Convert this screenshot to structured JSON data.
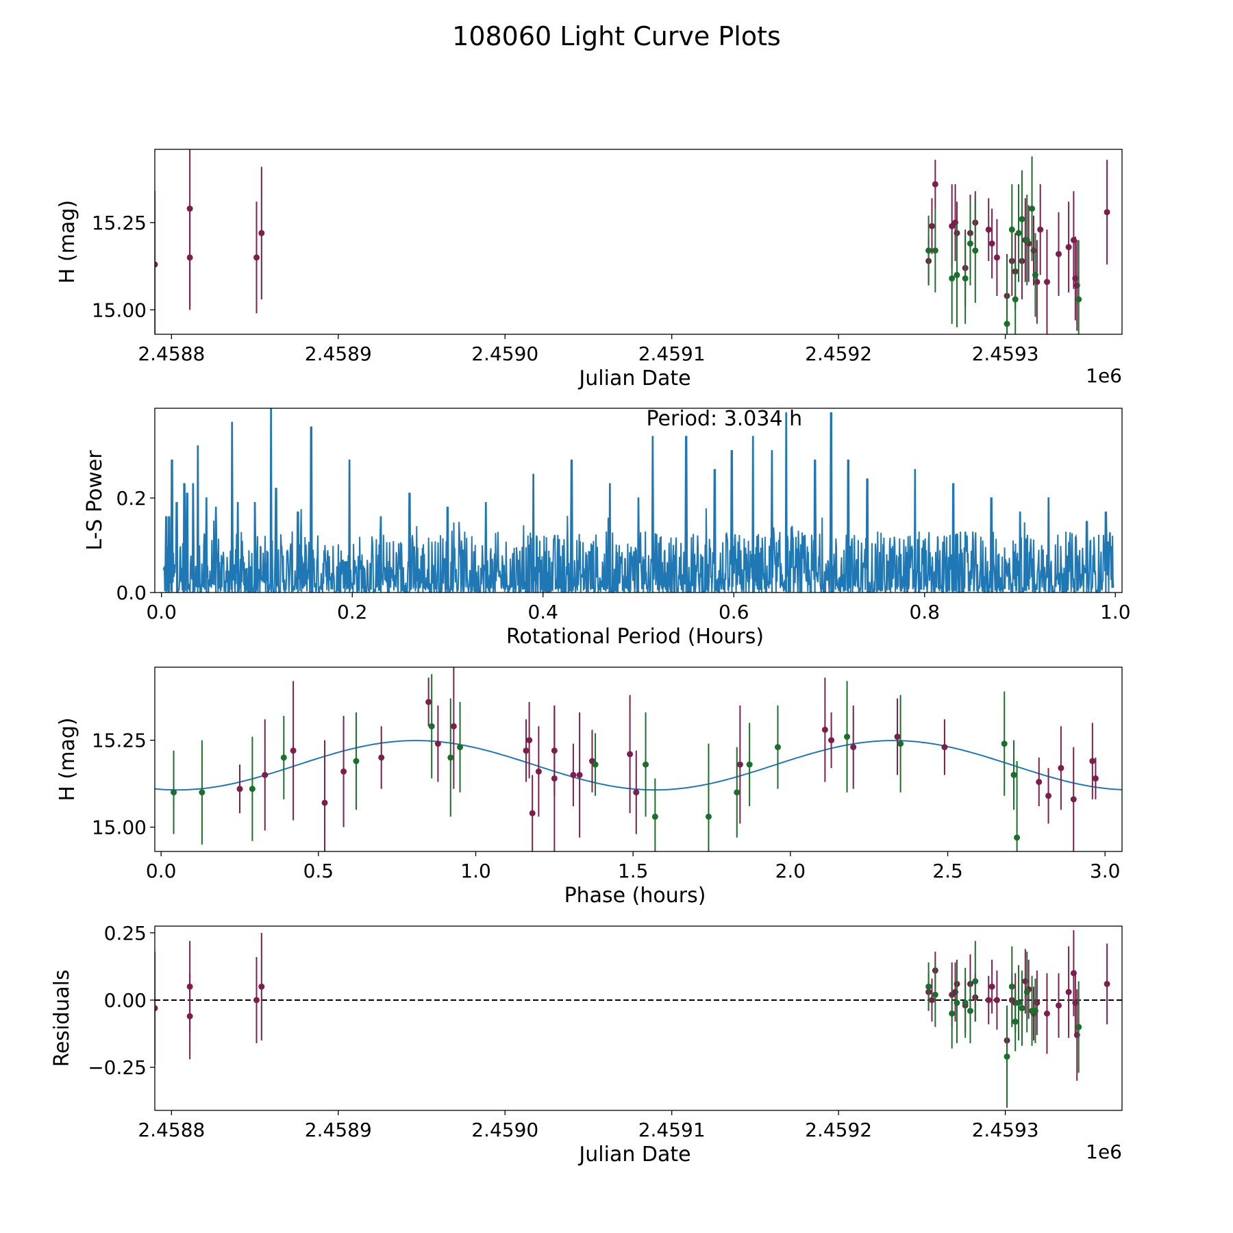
{
  "chart_data": [
    {
      "type": "scatter",
      "name": "lightcurve",
      "title": "108060 Light Curve Plots",
      "xlabel": "Julian Date",
      "ylabel": "H (mag)",
      "offset_text": "1e6",
      "xlim": [
        2.45879,
        2.45937
      ],
      "ylim": [
        14.93,
        15.46
      ],
      "xticks": [
        2.4588,
        2.4589,
        2.459,
        2.4591,
        2.4592,
        2.4593
      ],
      "xtick_labels": [
        "2.4588",
        "2.4589",
        "2.4590",
        "2.4591",
        "2.4592",
        "2.4593"
      ],
      "yticks": [
        15.0,
        15.25
      ],
      "ytick_labels": [
        "15.00",
        "15.25"
      ],
      "series": [
        {
          "name": "purple",
          "color": "#7b1f4f",
          "points": [
            [
              2458790,
              15.13,
              0.21
            ],
            [
              2458811,
              15.29,
              0.28
            ],
            [
              2458811,
              15.15,
              0.15
            ],
            [
              2458851,
              15.15,
              0.16
            ],
            [
              2458854,
              15.22,
              0.19
            ],
            [
              2459254,
              15.14,
              0.07
            ],
            [
              2459256,
              15.24,
              0.08
            ],
            [
              2459258,
              15.36,
              0.07
            ],
            [
              2459268,
              15.24,
              0.12
            ],
            [
              2459270,
              15.25,
              0.11
            ],
            [
              2459271,
              15.22,
              0.09
            ],
            [
              2459276,
              15.12,
              0.11
            ],
            [
              2459279,
              15.22,
              0.11
            ],
            [
              2459282,
              15.25,
              0.09
            ],
            [
              2459290,
              15.23,
              0.09
            ],
            [
              2459292,
              15.19,
              0.1
            ],
            [
              2459295,
              15.15,
              0.11
            ],
            [
              2459301,
              15.04,
              0.12
            ],
            [
              2459304,
              15.14,
              0.1
            ],
            [
              2459306,
              15.11,
              0.11
            ],
            [
              2459310,
              15.14,
              0.11
            ],
            [
              2459312,
              15.2,
              0.12
            ],
            [
              2459314,
              15.19,
              0.11
            ],
            [
              2459317,
              15.17,
              0.1
            ],
            [
              2459319,
              15.08,
              0.12
            ],
            [
              2459321,
              15.23,
              0.13
            ],
            [
              2459325,
              15.08,
              0.15
            ],
            [
              2459332,
              15.16,
              0.12
            ],
            [
              2459338,
              15.18,
              0.13
            ],
            [
              2459341,
              15.2,
              0.14
            ],
            [
              2459342,
              15.09,
              0.12
            ],
            [
              2459343,
              15.07,
              0.13
            ],
            [
              2459361,
              15.28,
              0.15
            ]
          ]
        },
        {
          "name": "green",
          "color": "#1c6e2c",
          "points": [
            [
              2459254,
              15.17,
              0.1
            ],
            [
              2459258,
              15.17,
              0.12
            ],
            [
              2459268,
              15.09,
              0.13
            ],
            [
              2459271,
              15.1,
              0.15
            ],
            [
              2459276,
              15.09,
              0.13
            ],
            [
              2459279,
              15.19,
              0.12
            ],
            [
              2459282,
              15.17,
              0.15
            ],
            [
              2459301,
              14.96,
              0.19
            ],
            [
              2459304,
              15.23,
              0.13
            ],
            [
              2459306,
              15.03,
              0.11
            ],
            [
              2459308,
              15.22,
              0.14
            ],
            [
              2459310,
              15.26,
              0.14
            ],
            [
              2459313,
              15.2,
              0.13
            ],
            [
              2459316,
              15.29,
              0.15
            ],
            [
              2459318,
              15.1,
              0.12
            ],
            [
              2459344,
              15.03,
              0.17
            ]
          ]
        }
      ]
    },
    {
      "type": "line",
      "name": "periodogram",
      "annotation": "Period: 3.034 h",
      "xlabel": "Rotational Period (Hours)",
      "ylabel": "L-S Power",
      "xlim": [
        -0.007,
        1.007
      ],
      "ylim": [
        0,
        0.39
      ],
      "xticks": [
        0.0,
        0.2,
        0.4,
        0.6,
        0.8,
        1.0
      ],
      "xtick_labels": [
        "0.0",
        "0.2",
        "0.4",
        "0.6",
        "0.8",
        "1.0"
      ],
      "yticks": [
        0.0,
        0.2
      ],
      "ytick_labels": [
        "0.0",
        "0.2"
      ],
      "color": "#1f77b4",
      "samples": 2000,
      "spikes": [
        [
          0.005,
          0.16
        ],
        [
          0.008,
          0.16
        ],
        [
          0.011,
          0.28
        ],
        [
          0.016,
          0.19
        ],
        [
          0.024,
          0.23
        ],
        [
          0.027,
          0.21
        ],
        [
          0.033,
          0.23
        ],
        [
          0.038,
          0.31
        ],
        [
          0.047,
          0.2
        ],
        [
          0.057,
          0.18
        ],
        [
          0.074,
          0.36
        ],
        [
          0.08,
          0.19
        ],
        [
          0.098,
          0.19
        ],
        [
          0.115,
          0.39
        ],
        [
          0.12,
          0.22
        ],
        [
          0.143,
          0.17
        ],
        [
          0.157,
          0.35
        ],
        [
          0.197,
          0.28
        ],
        [
          0.23,
          0.16
        ],
        [
          0.26,
          0.21
        ],
        [
          0.3,
          0.18
        ],
        [
          0.34,
          0.19
        ],
        [
          0.39,
          0.25
        ],
        [
          0.43,
          0.28
        ],
        [
          0.47,
          0.23
        ],
        [
          0.5,
          0.2
        ],
        [
          0.515,
          0.33
        ],
        [
          0.55,
          0.33
        ],
        [
          0.58,
          0.26
        ],
        [
          0.598,
          0.3
        ],
        [
          0.62,
          0.33
        ],
        [
          0.64,
          0.3
        ],
        [
          0.655,
          0.38
        ],
        [
          0.685,
          0.28
        ],
        [
          0.702,
          0.38
        ],
        [
          0.72,
          0.28
        ],
        [
          0.74,
          0.24
        ],
        [
          0.79,
          0.26
        ],
        [
          0.83,
          0.23
        ],
        [
          0.87,
          0.2
        ],
        [
          0.9,
          0.17
        ],
        [
          0.93,
          0.2
        ],
        [
          0.97,
          0.15
        ],
        [
          0.99,
          0.17
        ]
      ]
    },
    {
      "type": "scatter",
      "name": "phased",
      "xlabel": "Phase (hours)",
      "ylabel": "H (mag)",
      "xlim": [
        -0.02,
        3.054
      ],
      "ylim": [
        14.93,
        15.46
      ],
      "xticks": [
        0.0,
        0.5,
        1.0,
        1.5,
        2.0,
        2.5,
        3.0
      ],
      "xtick_labels": [
        "0.0",
        "0.5",
        "1.0",
        "1.5",
        "2.0",
        "2.5",
        "3.0"
      ],
      "yticks": [
        15.0,
        15.25
      ],
      "ytick_labels": [
        "15.00",
        "15.25"
      ],
      "fit": {
        "period": 1.517,
        "mean": 15.178,
        "amplitude": 0.071,
        "peak_phase": 0.81,
        "color": "#1f77b4"
      },
      "series": [
        {
          "name": "purple",
          "color": "#7b1f4f",
          "points": [
            [
              0.25,
              15.11,
              0.07
            ],
            [
              0.33,
              15.15,
              0.16
            ],
            [
              0.42,
              15.22,
              0.2
            ],
            [
              0.52,
              15.07,
              0.18
            ],
            [
              0.58,
              15.16,
              0.16
            ],
            [
              0.7,
              15.2,
              0.09
            ],
            [
              0.85,
              15.36,
              0.07
            ],
            [
              0.88,
              15.24,
              0.11
            ],
            [
              0.93,
              15.29,
              0.18
            ],
            [
              1.16,
              15.22,
              0.09
            ],
            [
              1.17,
              15.25,
              0.11
            ],
            [
              1.18,
              15.04,
              0.11
            ],
            [
              1.2,
              15.16,
              0.13
            ],
            [
              1.25,
              15.22,
              0.13
            ],
            [
              1.25,
              15.14,
              0.21
            ],
            [
              1.31,
              15.15,
              0.09
            ],
            [
              1.33,
              15.15,
              0.18
            ],
            [
              1.37,
              15.19,
              0.09
            ],
            [
              1.49,
              15.21,
              0.17
            ],
            [
              1.51,
              15.1,
              0.12
            ],
            [
              1.84,
              15.18,
              0.17
            ],
            [
              2.11,
              15.28,
              0.15
            ],
            [
              2.13,
              15.25,
              0.08
            ],
            [
              2.2,
              15.23,
              0.12
            ],
            [
              2.34,
              15.26,
              0.11
            ],
            [
              2.49,
              15.23,
              0.08
            ],
            [
              2.79,
              15.13,
              0.07
            ],
            [
              2.82,
              15.09,
              0.08
            ],
            [
              2.86,
              15.17,
              0.12
            ],
            [
              2.9,
              15.08,
              0.15
            ],
            [
              2.96,
              15.19,
              0.11
            ],
            [
              2.97,
              15.14,
              0.06
            ]
          ]
        },
        {
          "name": "green",
          "color": "#1c6e2c",
          "points": [
            [
              0.04,
              15.1,
              0.12
            ],
            [
              0.13,
              15.1,
              0.15
            ],
            [
              0.29,
              15.11,
              0.15
            ],
            [
              0.39,
              15.2,
              0.12
            ],
            [
              0.62,
              15.19,
              0.14
            ],
            [
              0.86,
              15.29,
              0.15
            ],
            [
              0.92,
              15.2,
              0.17
            ],
            [
              0.95,
              15.23,
              0.13
            ],
            [
              1.38,
              15.18,
              0.09
            ],
            [
              1.54,
              15.18,
              0.15
            ],
            [
              1.57,
              15.03,
              0.11
            ],
            [
              1.74,
              15.03,
              0.21
            ],
            [
              1.83,
              15.1,
              0.13
            ],
            [
              1.87,
              15.18,
              0.12
            ],
            [
              1.96,
              15.23,
              0.12
            ],
            [
              2.18,
              15.26,
              0.16
            ],
            [
              2.35,
              15.24,
              0.14
            ],
            [
              2.68,
              15.24,
              0.15
            ],
            [
              2.71,
              15.15,
              0.1
            ],
            [
              2.72,
              14.97,
              0.22
            ]
          ]
        }
      ]
    },
    {
      "type": "scatter",
      "name": "residuals",
      "xlabel": "Julian Date",
      "ylabel": "Residuals",
      "offset_text": "1e6",
      "xlim": [
        2.45879,
        2.45937
      ],
      "ylim": [
        -0.41,
        0.275
      ],
      "xticks": [
        2.4588,
        2.4589,
        2.459,
        2.4591,
        2.4592,
        2.4593
      ],
      "xtick_labels": [
        "2.4588",
        "2.4589",
        "2.4590",
        "2.4591",
        "2.4592",
        "2.4593"
      ],
      "yticks": [
        0.25,
        0.0,
        -0.25
      ],
      "ytick_labels": [
        "0.25",
        "0.00",
        "−0.25"
      ],
      "reference_line": 0.0,
      "series": [
        {
          "name": "purple",
          "color": "#7b1f4f",
          "points": [
            [
              2458790,
              -0.03,
              0.21
            ],
            [
              2458811,
              0.05,
              0.17
            ],
            [
              2458811,
              -0.06,
              0.16
            ],
            [
              2458851,
              0.0,
              0.16
            ],
            [
              2458854,
              0.05,
              0.2
            ],
            [
              2459254,
              0.03,
              0.07
            ],
            [
              2459256,
              0.0,
              0.08
            ],
            [
              2459258,
              0.11,
              0.07
            ],
            [
              2459268,
              0.02,
              0.12
            ],
            [
              2459270,
              0.03,
              0.11
            ],
            [
              2459271,
              0.06,
              0.09
            ],
            [
              2459276,
              -0.02,
              0.1
            ],
            [
              2459279,
              0.06,
              0.11
            ],
            [
              2459282,
              0.01,
              0.09
            ],
            [
              2459290,
              0.0,
              0.09
            ],
            [
              2459292,
              0.05,
              0.1
            ],
            [
              2459295,
              0.0,
              0.11
            ],
            [
              2459301,
              -0.15,
              0.12
            ],
            [
              2459304,
              0.0,
              0.1
            ],
            [
              2459306,
              -0.01,
              0.11
            ],
            [
              2459310,
              -0.03,
              0.11
            ],
            [
              2459312,
              0.07,
              0.12
            ],
            [
              2459314,
              0.04,
              0.11
            ],
            [
              2459317,
              -0.05,
              0.1
            ],
            [
              2459319,
              -0.01,
              0.12
            ],
            [
              2459325,
              -0.05,
              0.15
            ],
            [
              2459332,
              -0.02,
              0.12
            ],
            [
              2459338,
              0.03,
              0.17
            ],
            [
              2459341,
              0.1,
              0.16
            ],
            [
              2459342,
              -0.01,
              0.12
            ],
            [
              2459343,
              -0.13,
              0.17
            ],
            [
              2459361,
              0.06,
              0.15
            ]
          ]
        },
        {
          "name": "green",
          "color": "#1c6e2c",
          "points": [
            [
              2459254,
              0.05,
              0.09
            ],
            [
              2459258,
              0.02,
              0.12
            ],
            [
              2459268,
              -0.05,
              0.13
            ],
            [
              2459271,
              -0.01,
              0.15
            ],
            [
              2459276,
              -0.01,
              0.13
            ],
            [
              2459279,
              -0.04,
              0.12
            ],
            [
              2459282,
              0.07,
              0.15
            ],
            [
              2459301,
              -0.21,
              0.19
            ],
            [
              2459304,
              0.05,
              0.15
            ],
            [
              2459306,
              -0.08,
              0.11
            ],
            [
              2459308,
              -0.01,
              0.14
            ],
            [
              2459310,
              -0.03,
              0.14
            ],
            [
              2459313,
              0.03,
              0.15
            ],
            [
              2459316,
              -0.04,
              0.13
            ],
            [
              2459318,
              -0.04,
              0.12
            ],
            [
              2459344,
              -0.1,
              0.17
            ]
          ]
        }
      ]
    }
  ]
}
